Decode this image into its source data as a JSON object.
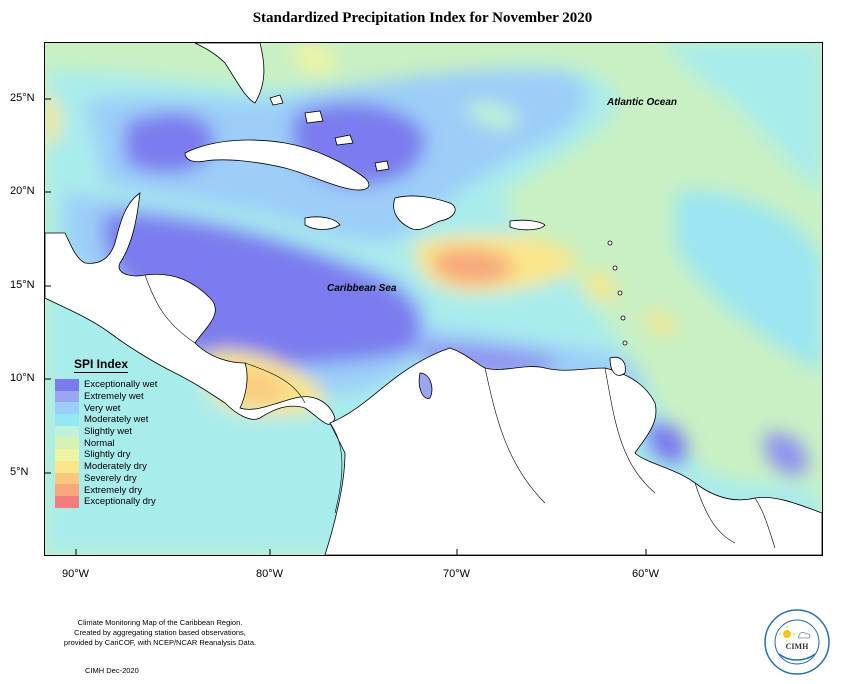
{
  "title": "Standardized Precipitation Index for November 2020",
  "map": {
    "labels": {
      "atlantic": "Atlantic Ocean",
      "caribbean": "Caribbean Sea"
    },
    "lat_ticks": [
      "25°N",
      "20°N",
      "15°N",
      "10°N",
      "5°N"
    ],
    "lon_ticks": [
      "90°W",
      "80°W",
      "70°W",
      "60°W"
    ],
    "background_color": "#c8f0c4",
    "land_color": "#ffffff"
  },
  "legend": {
    "title": "SPI Index",
    "items": [
      {
        "label": "Exceptionally wet",
        "color": "#7b7bee"
      },
      {
        "label": "Extremely wet",
        "color": "#9aa6f0"
      },
      {
        "label": "Very wet",
        "color": "#9ccef8"
      },
      {
        "label": "Moderately wet",
        "color": "#93e8f4"
      },
      {
        "label": "Slightly wet",
        "color": "#bff2d8"
      },
      {
        "label": "Normal",
        "color": "#d4f3b4"
      },
      {
        "label": "Slightly dry",
        "color": "#eef4a4"
      },
      {
        "label": "Moderately dry",
        "color": "#fae68a"
      },
      {
        "label": "Severely dry",
        "color": "#fcc97c"
      },
      {
        "label": "Extremely dry",
        "color": "#f8a87a"
      },
      {
        "label": "Exceptionally dry",
        "color": "#f07c7c"
      }
    ]
  },
  "footer": {
    "note_line1": "Climate Monitoring Map of the Caribbean Region.",
    "note_line2": "Created by aggregating station based observations,",
    "note_line3": "provided by CariCOF, with NCEP/NCAR Reanalysis Data.",
    "credit": "CIMH Dec-2020",
    "logo_text": "CIMH"
  }
}
